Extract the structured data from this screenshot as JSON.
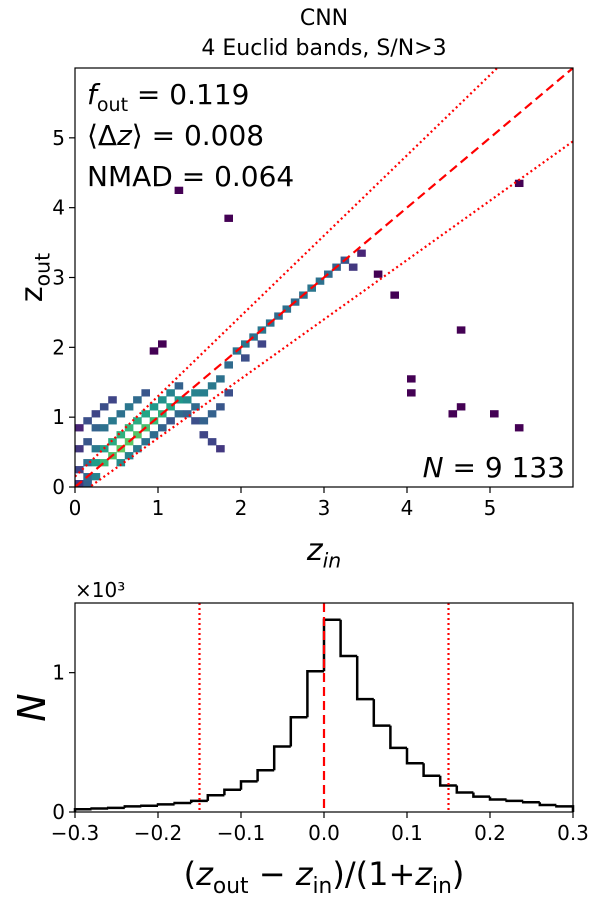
{
  "chart_data": [
    {
      "type": "heatmap",
      "title": "CNN",
      "subtitle": "4 Euclid bands, S/N>3",
      "x_label": [
        {
          "t": "z"
        },
        {
          "sub": "in"
        }
      ],
      "y_label": [
        {
          "t": "z"
        },
        {
          "sub": "out"
        }
      ],
      "xlim": [
        0,
        6
      ],
      "ylim": [
        0,
        6
      ],
      "xticks": [
        0,
        1,
        2,
        3,
        4,
        5
      ],
      "yticks": [
        0,
        1,
        2,
        3,
        4,
        5
      ],
      "bin_width": 0.1,
      "colormap": "viridis",
      "log_color": true,
      "annotations": [
        [
          {
            "i": "f"
          },
          {
            "sub": "out"
          },
          {
            "t": " = 0.119"
          }
        ],
        [
          {
            "t": "⟨Δ"
          },
          {
            "i": "z"
          },
          {
            "t": "⟩ = 0.008"
          }
        ],
        [
          {
            "t": "NMAD = 0.064"
          }
        ]
      ],
      "count_label": [
        {
          "i": "N"
        },
        {
          "t": " = 9 133"
        }
      ],
      "reference_lines": [
        {
          "slope": 1,
          "intercept": 0,
          "style": "dashed",
          "color": "#ff0000"
        },
        {
          "slope": 1.15,
          "intercept": 0.15,
          "style": "dotted",
          "color": "#ff0000"
        },
        {
          "slope": 0.85,
          "intercept": -0.15,
          "style": "dotted",
          "color": "#ff0000"
        }
      ],
      "cells": [
        [
          0.0,
          0.0,
          3
        ],
        [
          0.1,
          0.0,
          8
        ],
        [
          0.2,
          0.1,
          20
        ],
        [
          0.1,
          0.1,
          10
        ],
        [
          0.0,
          0.2,
          4
        ],
        [
          0.0,
          0.5,
          3
        ],
        [
          0.0,
          0.8,
          2
        ],
        [
          0.1,
          0.3,
          12
        ],
        [
          0.1,
          0.6,
          6
        ],
        [
          0.1,
          0.9,
          5
        ],
        [
          0.2,
          0.3,
          40
        ],
        [
          0.2,
          0.5,
          15
        ],
        [
          0.2,
          0.8,
          8
        ],
        [
          0.2,
          1.0,
          4
        ],
        [
          0.3,
          0.3,
          90
        ],
        [
          0.3,
          0.5,
          45
        ],
        [
          0.3,
          0.8,
          12
        ],
        [
          0.3,
          1.1,
          5
        ],
        [
          0.4,
          0.4,
          120
        ],
        [
          0.4,
          0.6,
          60
        ],
        [
          0.4,
          0.9,
          15
        ],
        [
          0.4,
          1.2,
          4
        ],
        [
          0.5,
          0.5,
          150
        ],
        [
          0.5,
          0.7,
          70
        ],
        [
          0.5,
          0.3,
          25
        ],
        [
          0.5,
          1.0,
          12
        ],
        [
          0.6,
          0.6,
          140
        ],
        [
          0.6,
          0.8,
          80
        ],
        [
          0.6,
          0.4,
          20
        ],
        [
          0.6,
          1.1,
          14
        ],
        [
          0.7,
          0.7,
          130
        ],
        [
          0.7,
          0.9,
          60
        ],
        [
          0.7,
          1.2,
          10
        ],
        [
          0.7,
          0.5,
          15
        ],
        [
          0.8,
          0.8,
          110
        ],
        [
          0.8,
          1.0,
          50
        ],
        [
          0.8,
          0.6,
          12
        ],
        [
          0.8,
          1.3,
          6
        ],
        [
          0.9,
          0.9,
          90
        ],
        [
          0.9,
          1.1,
          35
        ],
        [
          0.9,
          0.7,
          10
        ],
        [
          1.0,
          1.0,
          70
        ],
        [
          1.0,
          1.2,
          30
        ],
        [
          1.0,
          0.8,
          8
        ],
        [
          1.1,
          1.1,
          50
        ],
        [
          1.1,
          1.3,
          20
        ],
        [
          1.1,
          0.9,
          6
        ],
        [
          1.2,
          1.2,
          35
        ],
        [
          1.2,
          1.0,
          10
        ],
        [
          1.2,
          1.4,
          8
        ],
        [
          1.3,
          1.2,
          25
        ],
        [
          1.3,
          1.0,
          8
        ],
        [
          1.4,
          1.3,
          20
        ],
        [
          1.4,
          1.1,
          10
        ],
        [
          1.4,
          0.9,
          5
        ],
        [
          1.5,
          1.3,
          18
        ],
        [
          1.5,
          0.9,
          8
        ],
        [
          1.5,
          0.7,
          4
        ],
        [
          1.6,
          1.4,
          15
        ],
        [
          1.6,
          1.0,
          8
        ],
        [
          1.6,
          0.6,
          4
        ],
        [
          1.7,
          1.5,
          12
        ],
        [
          1.7,
          1.1,
          6
        ],
        [
          1.7,
          0.5,
          3
        ],
        [
          1.8,
          1.7,
          10
        ],
        [
          1.8,
          1.3,
          5
        ],
        [
          1.9,
          1.9,
          12
        ],
        [
          2.0,
          2.0,
          14
        ],
        [
          2.0,
          1.8,
          5
        ],
        [
          2.1,
          2.1,
          12
        ],
        [
          2.2,
          2.2,
          14
        ],
        [
          2.2,
          2.0,
          4
        ],
        [
          2.3,
          2.3,
          12
        ],
        [
          2.4,
          2.4,
          10
        ],
        [
          2.5,
          2.5,
          12
        ],
        [
          2.6,
          2.6,
          10
        ],
        [
          2.7,
          2.7,
          12
        ],
        [
          2.8,
          2.8,
          14
        ],
        [
          2.9,
          2.9,
          12
        ],
        [
          3.0,
          3.0,
          10
        ],
        [
          3.1,
          3.1,
          8
        ],
        [
          3.2,
          3.2,
          6
        ],
        [
          3.3,
          3.1,
          3
        ],
        [
          3.4,
          3.3,
          2
        ],
        [
          3.6,
          3.0,
          1
        ],
        [
          3.8,
          2.7,
          1
        ],
        [
          4.0,
          1.5,
          1
        ],
        [
          4.5,
          1.0,
          1
        ],
        [
          4.6,
          1.1,
          1
        ],
        [
          5.0,
          1.0,
          1
        ],
        [
          5.3,
          0.8,
          1
        ],
        [
          5.3,
          4.3,
          1
        ],
        [
          1.2,
          4.2,
          1
        ],
        [
          1.8,
          3.8,
          1
        ],
        [
          0.9,
          1.9,
          1
        ],
        [
          1.0,
          2.0,
          1
        ],
        [
          4.0,
          1.3,
          1
        ],
        [
          4.6,
          2.2,
          1
        ]
      ]
    },
    {
      "type": "histogram",
      "color": "#000000",
      "x_label": [
        {
          "t": "("
        },
        {
          "i": "z"
        },
        {
          "sub": "out"
        },
        {
          "t": " − "
        },
        {
          "i": "z"
        },
        {
          "sub": "in"
        },
        {
          "t": ")/(1+"
        },
        {
          "i": "z"
        },
        {
          "sub": "in"
        },
        {
          "t": ")"
        }
      ],
      "y_label": "N",
      "y_offset_label": "×10³",
      "xlim": [
        -0.3,
        0.3
      ],
      "ylim": [
        0,
        1.5
      ],
      "xticks": [
        {
          "value": -0.3,
          "label": "−0.3"
        },
        {
          "value": -0.2,
          "label": "−0.2"
        },
        {
          "value": -0.1,
          "label": "−0.1"
        },
        {
          "value": 0,
          "label": "0.0"
        },
        0.1,
        0.2,
        0.3
      ],
      "yticks": [
        0,
        1
      ],
      "bins": [
        -0.3,
        -0.28,
        -0.26,
        -0.24,
        -0.22,
        -0.2,
        -0.18,
        -0.16,
        -0.14,
        -0.12,
        -0.1,
        -0.08,
        -0.06,
        -0.04,
        -0.02,
        0,
        0.02,
        0.04,
        0.06,
        0.08,
        0.1,
        0.12,
        0.14,
        0.16,
        0.18,
        0.2,
        0.22,
        0.24,
        0.26,
        0.28,
        0.3
      ],
      "values": [
        0.02,
        0.025,
        0.03,
        0.04,
        0.045,
        0.055,
        0.065,
        0.08,
        0.12,
        0.16,
        0.22,
        0.3,
        0.47,
        0.68,
        1.01,
        1.38,
        1.12,
        0.81,
        0.62,
        0.46,
        0.35,
        0.26,
        0.19,
        0.14,
        0.11,
        0.09,
        0.08,
        0.07,
        0.05,
        0.04
      ],
      "vlines": [
        {
          "x": -0.15,
          "style": "dotted",
          "color": "#ff0000"
        },
        {
          "x": 0,
          "style": "dashed",
          "color": "#ff0000"
        },
        {
          "x": 0.15,
          "style": "dotted",
          "color": "#ff0000"
        }
      ]
    }
  ]
}
